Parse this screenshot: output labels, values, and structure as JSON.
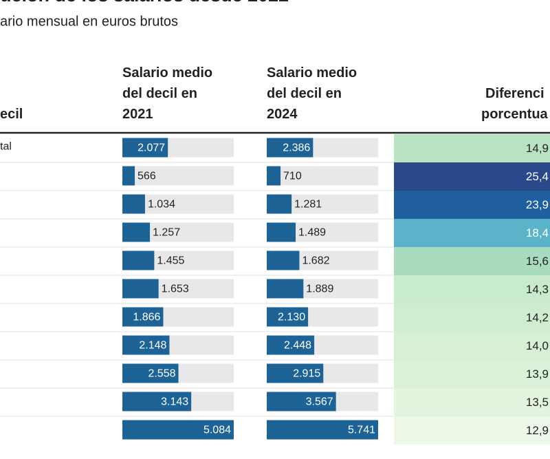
{
  "title": "ución de los salarios desde 2022",
  "subtitle": "ario mensual en euros brutos",
  "table": {
    "headers": [
      [
        "ecil"
      ],
      [
        "Salario medio",
        "del decil en",
        "2021"
      ],
      [
        "Salario medio",
        "del decil en",
        "2024"
      ],
      [
        "Diferenci",
        "porcentua"
      ]
    ],
    "row_labels": [
      "tal"
    ],
    "salary_2021": {
      "color": "#1d6396",
      "values": [
        2077,
        566,
        1034,
        1257,
        1455,
        1653,
        1866,
        2148,
        2558,
        3143,
        5084
      ],
      "value_labels": [
        "2.077",
        "566",
        "1.034",
        "1.257",
        "1.455",
        "1.653",
        "1.866",
        "2.148",
        "2.558",
        "3.143",
        "5.084"
      ]
    },
    "salary_2024": {
      "color": "#1d6396",
      "values": [
        2386,
        710,
        1281,
        1489,
        1682,
        1889,
        2130,
        2448,
        2915,
        3567,
        5741
      ],
      "value_labels": [
        "2.386",
        "710",
        "1.281",
        "1.489",
        "1.682",
        "1.889",
        "2.130",
        "2.448",
        "2.915",
        "3.567",
        "5.741"
      ]
    },
    "difference": {
      "values": [
        14.9,
        25.4,
        23.9,
        18.4,
        15.6,
        14.3,
        14.2,
        14.0,
        13.9,
        13.5,
        12.9
      ],
      "value_labels": [
        "14,9",
        "25,4",
        "23,9",
        "18,4",
        "15,6",
        "14,3",
        "14,2",
        "14,0",
        "13,9",
        "13,5",
        "12,9"
      ],
      "colors": [
        "#b9e3c3",
        "#29498b",
        "#1f5fa0",
        "#5bb3c9",
        "#a9dcbe",
        "#c9ebcd",
        "#cfedd1",
        "#d7efd6",
        "#dbf1d9",
        "#e3f4df",
        "#edf8e9"
      ]
    }
  }
}
